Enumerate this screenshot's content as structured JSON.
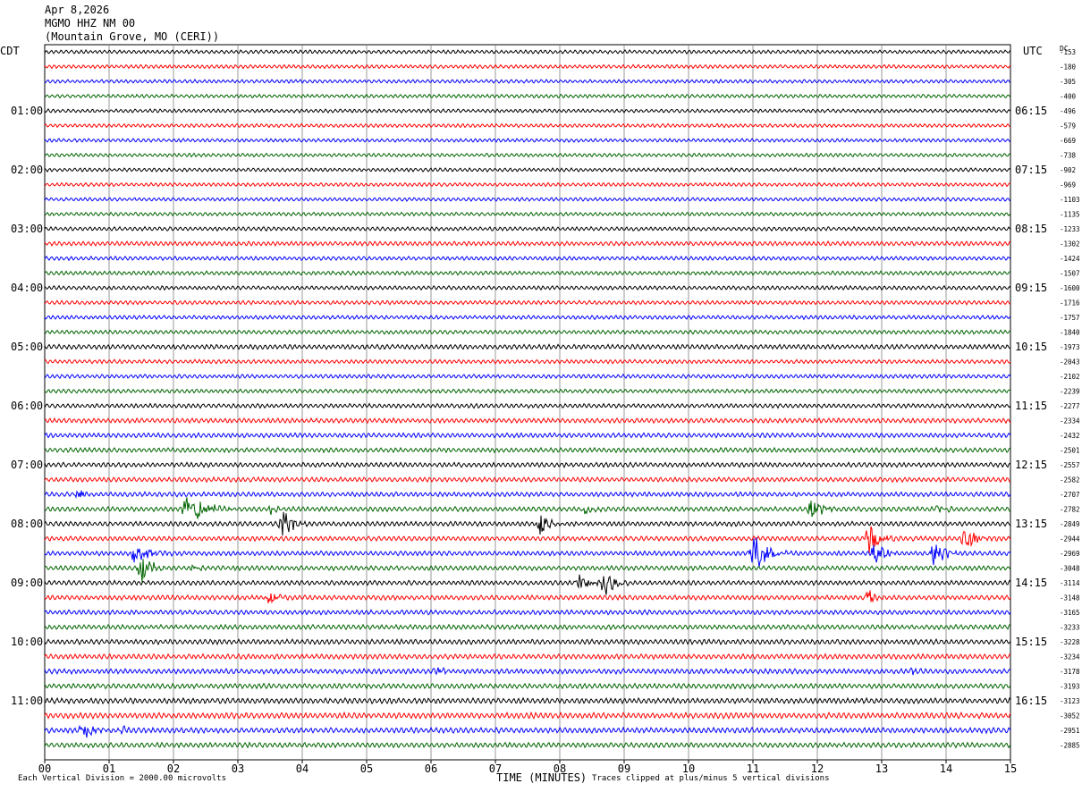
{
  "header": {
    "date": "Apr 8,2026",
    "station": "MGMO HHZ NM 00",
    "location": "(Mountain Grove, MO (CERI))"
  },
  "axis_tags": {
    "left": "CDT",
    "right": "UTC",
    "dc": "DC"
  },
  "footer": {
    "scale_note": "Each Vertical Division = 2000.00 microvolts",
    "xlabel": "TIME (MINUTES)",
    "clip_note": "Traces clipped at plus/minus 5 vertical divisions"
  },
  "colors": {
    "black": "#000000",
    "red": "#ff0000",
    "blue": "#0000ff",
    "green": "#006400",
    "grid": "#808080"
  },
  "chart_data": {
    "type": "line",
    "subtype": "helicorder",
    "xlabel": "TIME (MINUTES)",
    "xlim": [
      0,
      15
    ],
    "x_ticks": [
      "00",
      "01",
      "02",
      "03",
      "04",
      "05",
      "06",
      "07",
      "08",
      "09",
      "10",
      "11",
      "12",
      "13",
      "14",
      "15"
    ],
    "traces_per_hour": 4,
    "trace_color_cycle": [
      "black",
      "red",
      "blue",
      "green"
    ],
    "left_hour_labels": [
      {
        "trace": 4,
        "label": "01:00"
      },
      {
        "trace": 8,
        "label": "02:00"
      },
      {
        "trace": 12,
        "label": "03:00"
      },
      {
        "trace": 16,
        "label": "04:00"
      },
      {
        "trace": 20,
        "label": "05:00"
      },
      {
        "trace": 24,
        "label": "06:00"
      },
      {
        "trace": 28,
        "label": "07:00"
      },
      {
        "trace": 32,
        "label": "08:00"
      },
      {
        "trace": 36,
        "label": "09:00"
      },
      {
        "trace": 40,
        "label": "10:00"
      },
      {
        "trace": 44,
        "label": "11:00"
      }
    ],
    "right_hour_labels": [
      {
        "trace": 4,
        "label": "06:15"
      },
      {
        "trace": 8,
        "label": "07:15"
      },
      {
        "trace": 12,
        "label": "08:15"
      },
      {
        "trace": 16,
        "label": "09:15"
      },
      {
        "trace": 20,
        "label": "10:15"
      },
      {
        "trace": 24,
        "label": "11:15"
      },
      {
        "trace": 28,
        "label": "12:15"
      },
      {
        "trace": 32,
        "label": "13:15"
      },
      {
        "trace": 36,
        "label": "14:15"
      },
      {
        "trace": 40,
        "label": "15:15"
      },
      {
        "trace": 44,
        "label": "16:15"
      }
    ],
    "dc_offsets": [
      "-153",
      "-180",
      "-305",
      "-400",
      "-496",
      "-579",
      "-669",
      "-738",
      "-902",
      "-969",
      "-1103",
      "-1135",
      "-1233",
      "-1302",
      "-1424",
      "-1507",
      "-1600",
      "-1716",
      "-1757",
      "-1840",
      "-1973",
      "-2043",
      "-2102",
      "-2239",
      "-2277",
      "-2334",
      "-2432",
      "-2501",
      "-2557",
      "-2582",
      "-2707",
      "-2782",
      "-2849",
      "-2944",
      "-2969",
      "-3048",
      "-3114",
      "-3148",
      "-3165",
      "-3233",
      "-3228",
      "-3234",
      "-3178",
      "-3193",
      "-3123",
      "-3052",
      "-2951",
      "-2885"
    ],
    "noise_amplitude": [
      1.0,
      1.0,
      1.0,
      1.0,
      1.0,
      1.0,
      1.0,
      1.0,
      1.0,
      1.0,
      1.0,
      1.0,
      1.1,
      1.2,
      1.1,
      1.1,
      1.1,
      1.1,
      1.1,
      1.1,
      1.3,
      1.1,
      1.1,
      1.1,
      1.2,
      1.3,
      1.3,
      1.3,
      1.3,
      1.3,
      1.3,
      1.3,
      1.3,
      1.3,
      1.3,
      1.3,
      1.3,
      1.3,
      1.3,
      1.3,
      1.4,
      1.4,
      1.4,
      1.4,
      1.5,
      1.6,
      1.5,
      1.4
    ],
    "events": [
      {
        "trace": 30,
        "minute": 0.5,
        "duration": 0.4,
        "amp": 6
      },
      {
        "trace": 31,
        "minute": 2.2,
        "duration": 0.8,
        "amp": 20
      },
      {
        "trace": 31,
        "minute": 3.5,
        "duration": 0.3,
        "amp": 7
      },
      {
        "trace": 31,
        "minute": 8.4,
        "duration": 0.3,
        "amp": 6
      },
      {
        "trace": 31,
        "minute": 11.9,
        "duration": 0.5,
        "amp": 10
      },
      {
        "trace": 31,
        "minute": 13.9,
        "duration": 0.3,
        "amp": 6
      },
      {
        "trace": 32,
        "minute": 3.7,
        "duration": 0.4,
        "amp": 18
      },
      {
        "trace": 32,
        "minute": 7.7,
        "duration": 0.4,
        "amp": 13
      },
      {
        "trace": 33,
        "minute": 12.8,
        "duration": 0.5,
        "amp": 16
      },
      {
        "trace": 33,
        "minute": 14.3,
        "duration": 0.5,
        "amp": 14
      },
      {
        "trace": 34,
        "minute": 1.4,
        "duration": 0.6,
        "amp": 12
      },
      {
        "trace": 34,
        "minute": 11.0,
        "duration": 0.6,
        "amp": 22
      },
      {
        "trace": 34,
        "minute": 12.9,
        "duration": 0.4,
        "amp": 14
      },
      {
        "trace": 34,
        "minute": 13.8,
        "duration": 0.4,
        "amp": 16
      },
      {
        "trace": 35,
        "minute": 1.5,
        "duration": 0.4,
        "amp": 18
      },
      {
        "trace": 35,
        "minute": 2.3,
        "duration": 0.3,
        "amp": 6
      },
      {
        "trace": 36,
        "minute": 8.3,
        "duration": 0.5,
        "amp": 10
      },
      {
        "trace": 36,
        "minute": 8.7,
        "duration": 0.4,
        "amp": 16
      },
      {
        "trace": 37,
        "minute": 3.5,
        "duration": 0.3,
        "amp": 10
      },
      {
        "trace": 37,
        "minute": 12.8,
        "duration": 0.3,
        "amp": 10
      },
      {
        "trace": 42,
        "minute": 6.1,
        "duration": 0.2,
        "amp": 6
      },
      {
        "trace": 42,
        "minute": 13.5,
        "duration": 0.2,
        "amp": 4
      },
      {
        "trace": 46,
        "minute": 0.6,
        "duration": 0.5,
        "amp": 9
      },
      {
        "trace": 46,
        "minute": 1.2,
        "duration": 0.2,
        "amp": 7
      }
    ]
  }
}
